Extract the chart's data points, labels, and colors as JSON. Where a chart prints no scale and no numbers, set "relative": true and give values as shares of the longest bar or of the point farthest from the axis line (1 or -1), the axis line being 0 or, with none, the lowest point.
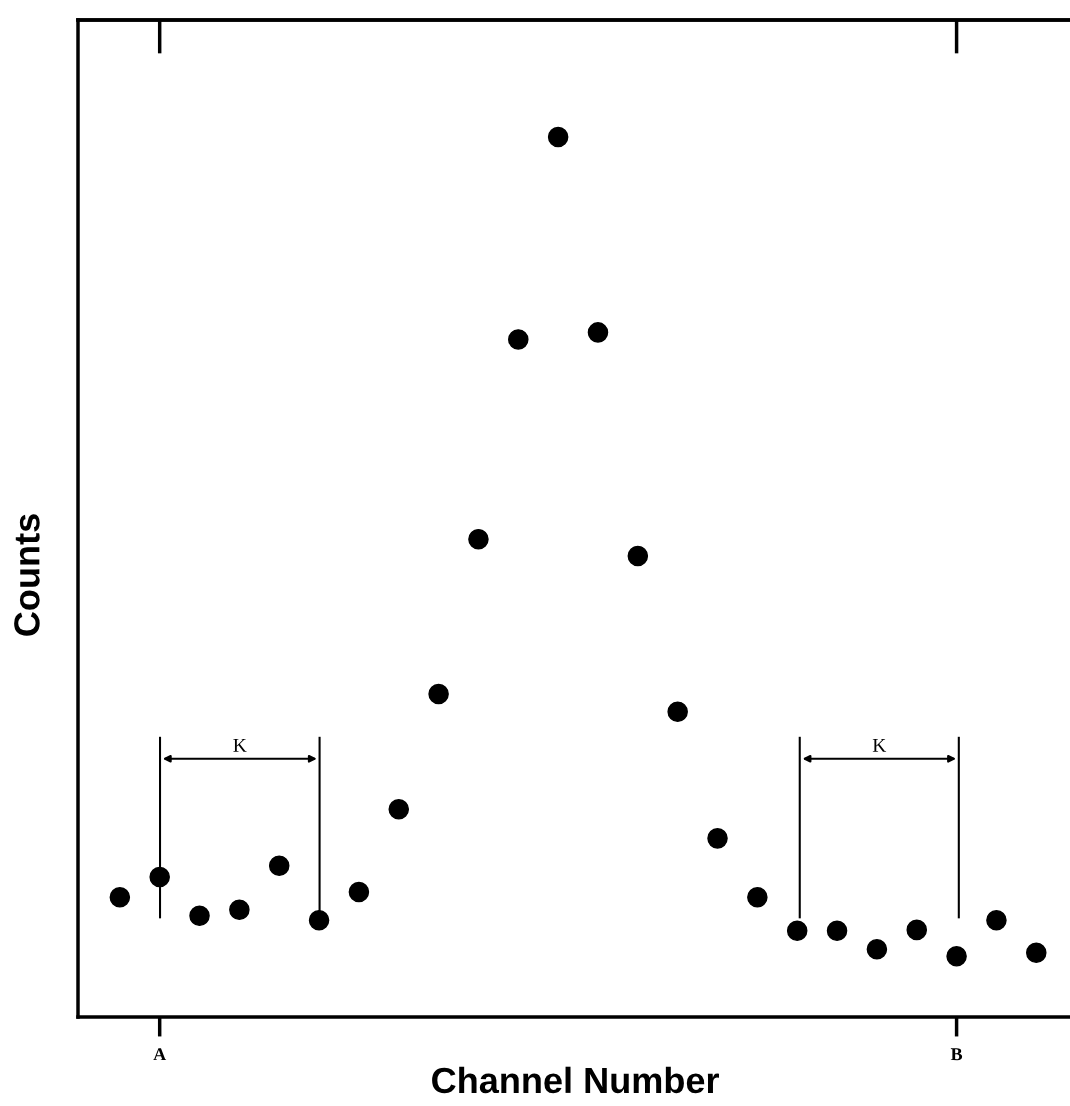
{
  "chart_data": {
    "type": "scatter",
    "xlabel": "Channel Number",
    "ylabel": "Counts",
    "relative": true,
    "marker": "circle",
    "grid": false,
    "legend": false,
    "categories": [
      null,
      "A",
      null,
      null,
      null,
      null,
      null,
      null,
      null,
      null,
      null,
      null,
      null,
      null,
      null,
      null,
      null,
      null,
      null,
      null,
      null,
      "B",
      null,
      null
    ],
    "series": [
      {
        "color": "#000000",
        "values": [
          0.136,
          0.159,
          0.115,
          0.122,
          0.172,
          0.11,
          0.142,
          0.236,
          0.367,
          0.543,
          0.77,
          1,
          0.778,
          0.524,
          0.347,
          0.203,
          0.136,
          0.098,
          0.098,
          0.077,
          0.099,
          0.069,
          0.11,
          0.073
        ]
      }
    ],
    "annotations": [
      "K",
      "K"
    ]
  }
}
